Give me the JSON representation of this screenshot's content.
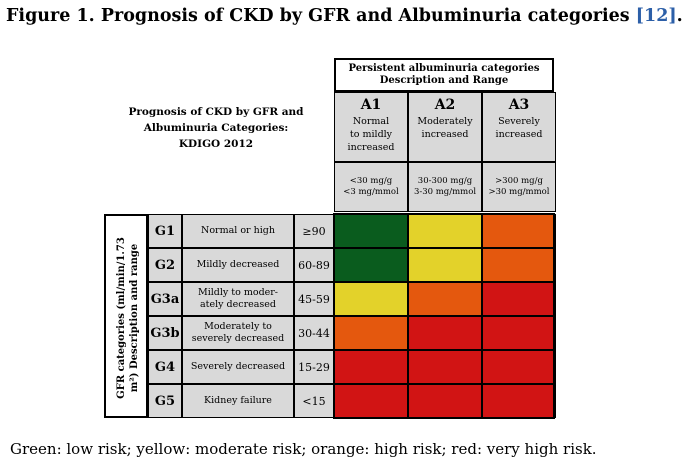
{
  "figure": {
    "title": "Figure 1. Prognosis of CKD by GFR and Albuminuria categories",
    "ref": "[12]",
    "period": "."
  },
  "prognosis_title": {
    "line1": "Prognosis of CKD by GFR and",
    "line2": "Albuminuria Categories:",
    "line3": "KDIGO 2012"
  },
  "albuminuria_header": {
    "line1": "Persistent albuminuria categories",
    "line2": "Description and Range"
  },
  "albuminuria_categories": [
    {
      "code": "A1",
      "desc_lines": [
        "Normal",
        "to mildly",
        "increased"
      ],
      "range_lines": [
        "<30 mg/g",
        "<3 mg/mmol"
      ]
    },
    {
      "code": "A2",
      "desc_lines": [
        "Moderately",
        "increased"
      ],
      "range_lines": [
        "30-300 mg/g",
        "3-30 mg/mmol"
      ]
    },
    {
      "code": "A3",
      "desc_lines": [
        "Severely",
        "increased"
      ],
      "range_lines": [
        ">300 mg/g",
        ">30 mg/mmol"
      ]
    }
  ],
  "gfr_side_label": {
    "line1": "GFR categories (ml/min/1.73",
    "line2": "m²) Description and range"
  },
  "gfr_categories": [
    {
      "code": "G1",
      "desc_lines": [
        "Normal or high"
      ],
      "range": "≥90"
    },
    {
      "code": "G2",
      "desc_lines": [
        "Mildly decreased"
      ],
      "range": "60-89"
    },
    {
      "code": "G3a",
      "desc_lines": [
        "Mildly to moder-",
        "ately decreased"
      ],
      "range": "45-59"
    },
    {
      "code": "G3b",
      "desc_lines": [
        "Moderately to",
        "severely decreased"
      ],
      "range": "30-44"
    },
    {
      "code": "G4",
      "desc_lines": [
        "Severely decreased"
      ],
      "range": "15-29"
    },
    {
      "code": "G5",
      "desc_lines": [
        "Kidney failure"
      ],
      "range": "<15"
    }
  ],
  "risk_colors": {
    "low": "#0a5c1e",
    "moderate": "#e3d22a",
    "high": "#e4580e",
    "very_high": "#d11414"
  },
  "risk_matrix": [
    [
      "low",
      "moderate",
      "high"
    ],
    [
      "low",
      "moderate",
      "high"
    ],
    [
      "moderate",
      "high",
      "very_high"
    ],
    [
      "high",
      "very_high",
      "very_high"
    ],
    [
      "very_high",
      "very_high",
      "very_high"
    ],
    [
      "very_high",
      "very_high",
      "very_high"
    ]
  ],
  "caption": "Green: low risk; yellow: moderate risk; orange: high risk; red: very high risk."
}
